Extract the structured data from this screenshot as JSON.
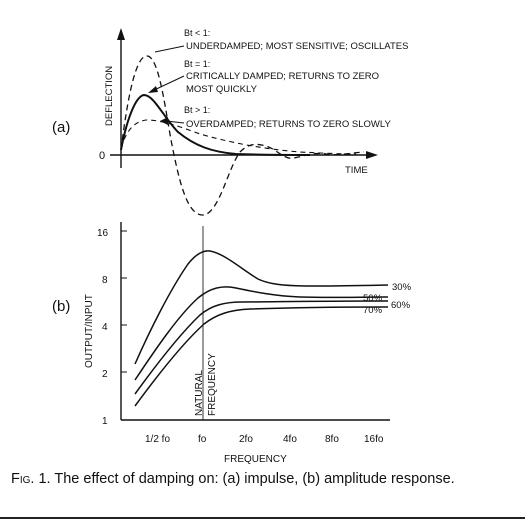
{
  "panel_a": {
    "label": "(a)",
    "y_axis_label": "DEFLECTION",
    "x_axis_label": "TIME",
    "zero_label": "0",
    "annotations": [
      {
        "condition": "Bt < 1:",
        "text": "UNDERDAMPED; MOST SENSITIVE; OSCILLATES"
      },
      {
        "condition": "Bt = 1:",
        "text": "CRITICALLY DAMPED; RETURNS TO ZERO",
        "text2": "MOST QUICKLY"
      },
      {
        "condition": "Bt > 1:",
        "text": "OVERDAMPED; RETURNS TO ZERO SLOWLY"
      }
    ]
  },
  "panel_b": {
    "label": "(b)",
    "y_axis_label": "OUTPUT/INPUT",
    "x_axis_label": "FREQUENCY",
    "y_ticks": [
      "1",
      "2",
      "4",
      "8",
      "16"
    ],
    "x_ticks": [
      "1/2 fo",
      "fo",
      "2fo",
      "4fo",
      "8fo",
      "16fo"
    ],
    "vline_label_1": "NATURAL",
    "vline_label_2": "FREQUENCY",
    "curve_labels": [
      "30%",
      "50%",
      "60%",
      "70%"
    ]
  },
  "caption": {
    "fig": "Fig. 1.",
    "text": "The effect of damping on: (a) impulse, (b) amplitude response."
  }
}
